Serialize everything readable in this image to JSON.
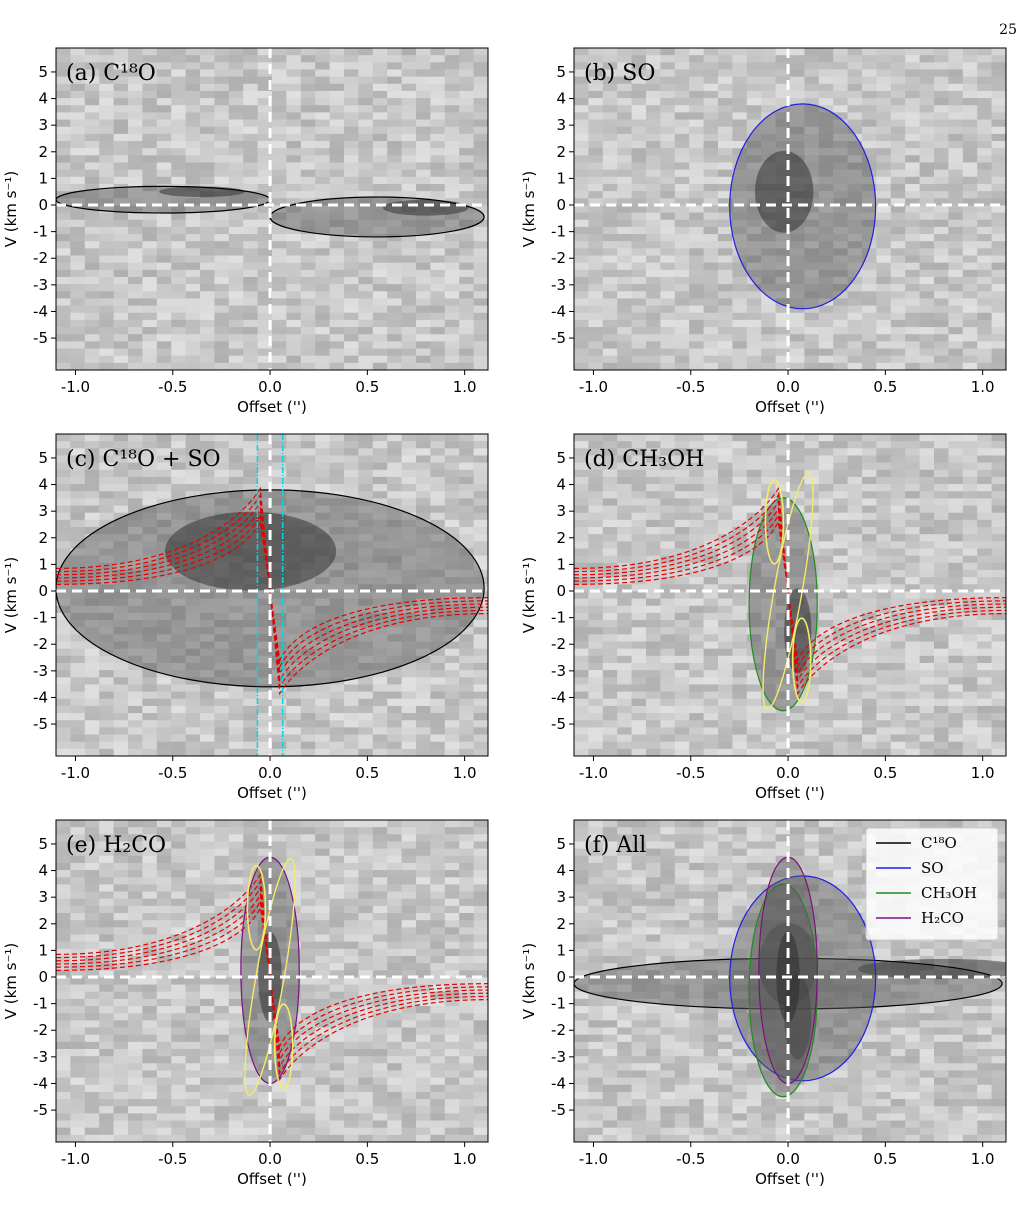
{
  "page_number": "25",
  "caption_text": "",
  "colors": {
    "c18o": "#000000",
    "so": "#1f1fe6",
    "ch3oh": "#1e8c1e",
    "h2co": "#7b127b",
    "model": "#e60000",
    "keplerian": "#f2ec6a",
    "marker": "#00d8e6",
    "dashes": "#ffffff"
  },
  "icons": [
    "legend-line-icon"
  ],
  "chart_data": [
    {
      "panel": "a",
      "type": "heatmap",
      "title": "(a) C¹⁸O",
      "xlabel": "Offset ('')",
      "ylabel": "V (km s⁻¹)",
      "xlim": [
        -1.1,
        1.12
      ],
      "ylim": [
        -6.2,
        5.9
      ],
      "xticks": [
        "-1.0",
        "-0.5",
        "0.0",
        "0.5",
        "1.0"
      ],
      "yticks": [
        "5",
        "4",
        "3",
        "2",
        "1",
        "0",
        "-1",
        "-2",
        "-3",
        "-4",
        "-5"
      ],
      "grid": false,
      "zero_lines": true,
      "emission": [
        {
          "line": "C18O",
          "offset": [
            -1.1,
            0.0
          ],
          "v_range": [
            -0.3,
            0.7
          ],
          "peak_offset": -0.35,
          "peak_v": 0.5
        },
        {
          "line": "C18O",
          "offset": [
            0.0,
            1.1
          ],
          "v_range": [
            -1.2,
            0.3
          ],
          "peak_offset": 0.8,
          "peak_v": -0.1
        }
      ]
    },
    {
      "panel": "b",
      "type": "heatmap",
      "title": "(b) SO",
      "xlabel": "Offset ('')",
      "ylabel": "V (km s⁻¹)",
      "xlim": [
        -1.1,
        1.12
      ],
      "ylim": [
        -6.2,
        5.9
      ],
      "xticks": [
        "-1.0",
        "-0.5",
        "0.0",
        "0.5",
        "1.0"
      ],
      "yticks": [
        "5",
        "4",
        "3",
        "2",
        "1",
        "0",
        "-1",
        "-2",
        "-3",
        "-4",
        "-5"
      ],
      "grid": false,
      "zero_lines": true,
      "emission": [
        {
          "line": "SO",
          "offset": [
            -0.3,
            0.45
          ],
          "v_range": [
            -3.9,
            3.8
          ],
          "peak_offset": -0.02,
          "peak_v": 0.5
        }
      ]
    },
    {
      "panel": "c",
      "type": "heatmap",
      "title": "(c) C¹⁸O + SO",
      "xlabel": "Offset ('')",
      "ylabel": "V (km s⁻¹)",
      "xlim": [
        -1.1,
        1.12
      ],
      "ylim": [
        -6.2,
        5.9
      ],
      "xticks": [
        "-1.0",
        "-0.5",
        "0.0",
        "0.5",
        "1.0"
      ],
      "yticks": [
        "5",
        "4",
        "3",
        "2",
        "1",
        "0",
        "-1",
        "-2",
        "-3",
        "-4",
        "-5"
      ],
      "grid": false,
      "zero_lines": true,
      "vertical_markers": [
        -0.065,
        0.065
      ],
      "model_contours": "red dashed infall-rotation model",
      "emission": [
        {
          "line": "C18O+SO",
          "offset": [
            -1.1,
            1.1
          ],
          "v_range": [
            -3.6,
            3.8
          ],
          "peak_offset": -0.1,
          "peak_v": 1.5
        }
      ]
    },
    {
      "panel": "d",
      "type": "heatmap",
      "title": "(d) CH₃OH",
      "xlabel": "Offset ('')",
      "ylabel": "V (km s⁻¹)",
      "xlim": [
        -1.1,
        1.12
      ],
      "ylim": [
        -6.2,
        5.9
      ],
      "xticks": [
        "-1.0",
        "-0.5",
        "0.0",
        "0.5",
        "1.0"
      ],
      "yticks": [
        "5",
        "4",
        "3",
        "2",
        "1",
        "0",
        "-1",
        "-2",
        "-3",
        "-4",
        "-5"
      ],
      "grid": false,
      "zero_lines": true,
      "model_contours": "red dashed infall-rotation model",
      "keplerian_contours": "yellow",
      "emission": [
        {
          "line": "CH3OH",
          "offset": [
            -0.2,
            0.15
          ],
          "v_range": [
            -4.5,
            3.5
          ],
          "peak_offset": 0.05,
          "peak_v": -1.5
        }
      ]
    },
    {
      "panel": "e",
      "type": "heatmap",
      "title": "(e) H₂CO",
      "xlabel": "Offset ('')",
      "ylabel": "V (km s⁻¹)",
      "xlim": [
        -1.1,
        1.12
      ],
      "ylim": [
        -6.2,
        5.9
      ],
      "xticks": [
        "-1.0",
        "-0.5",
        "0.0",
        "0.5",
        "1.0"
      ],
      "yticks": [
        "5",
        "4",
        "3",
        "2",
        "1",
        "0",
        "-1",
        "-2",
        "-3",
        "-4",
        "-5"
      ],
      "grid": false,
      "zero_lines": true,
      "model_contours": "red dashed infall-rotation model",
      "keplerian_contours": "yellow",
      "emission": [
        {
          "line": "H2CO",
          "offset": [
            -0.15,
            0.15
          ],
          "v_range": [
            -4.0,
            4.5
          ],
          "peak_offset": 0.0,
          "peak_v": 0.0
        }
      ]
    },
    {
      "panel": "f",
      "type": "heatmap",
      "title": "(f)  All",
      "xlabel": "Offset ('')",
      "ylabel": "V (km s⁻¹)",
      "xlim": [
        -1.1,
        1.12
      ],
      "ylim": [
        -6.2,
        5.9
      ],
      "xticks": [
        "-1.0",
        "-0.5",
        "0.0",
        "0.5",
        "1.0"
      ],
      "yticks": [
        "5",
        "4",
        "3",
        "2",
        "1",
        "0",
        "-1",
        "-2",
        "-3",
        "-4",
        "-5"
      ],
      "grid": false,
      "zero_lines": true,
      "legend_position": "top-right",
      "legend": [
        {
          "name": "C¹⁸O",
          "color": "#000000"
        },
        {
          "name": "SO",
          "color": "#1f1fe6"
        },
        {
          "name": "CH₃OH",
          "color": "#1e8c1e"
        },
        {
          "name": "H₂CO",
          "color": "#7b127b"
        }
      ],
      "emission": [
        {
          "line": "C18O",
          "offset": [
            -1.1,
            1.1
          ],
          "v_range": [
            -1.2,
            0.7
          ],
          "peak_offset": 0.8,
          "peak_v": 0.3
        },
        {
          "line": "SO",
          "offset": [
            -0.3,
            0.45
          ],
          "v_range": [
            -3.9,
            3.8
          ],
          "peak_offset": 0.0,
          "peak_v": 0.5
        },
        {
          "line": "CH3OH",
          "offset": [
            -0.2,
            0.15
          ],
          "v_range": [
            -4.5,
            3.5
          ],
          "peak_offset": 0.05,
          "peak_v": -1.5
        },
        {
          "line": "H2CO",
          "offset": [
            -0.15,
            0.15
          ],
          "v_range": [
            -4.0,
            4.5
          ],
          "peak_offset": 0.0,
          "peak_v": 0.0
        }
      ]
    }
  ]
}
